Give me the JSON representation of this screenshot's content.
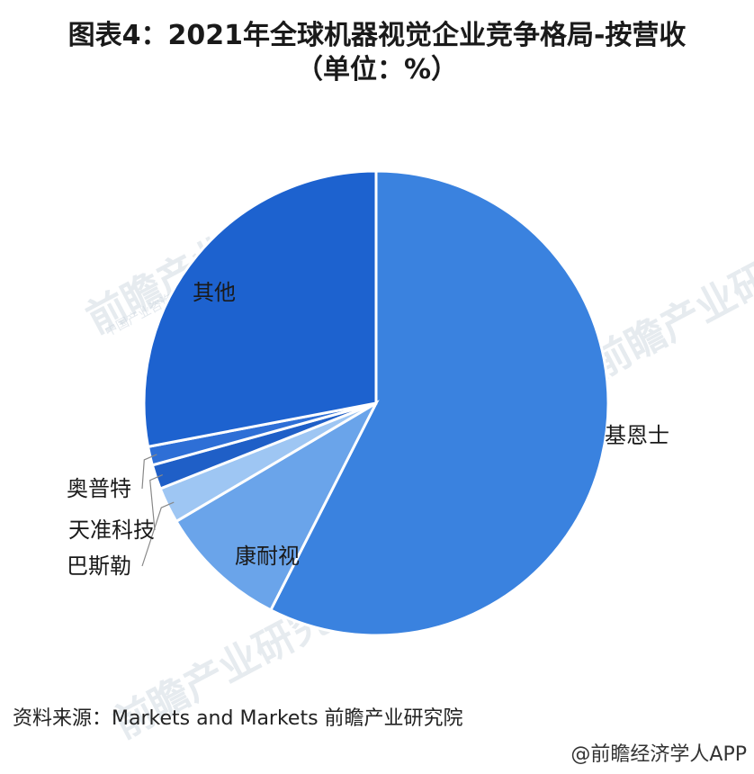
{
  "title_line1": "图表4：2021年全球机器视觉企业竞争格局-按营收",
  "title_line2": "（单位：%）",
  "source": "资料来源：Markets and Markets 前瞻产业研究院",
  "footer": "@前瞻经济学人APP",
  "watermark": {
    "text": "前瞻产业研究院",
    "sub": "中国产业咨询领导者"
  },
  "chart_data": {
    "type": "pie",
    "title": "图表4：2021年全球机器视觉企业竞争格局-按营收（单位：%）",
    "labels_on_chart": true,
    "slices": [
      {
        "name": "基恩士",
        "value": 57.5,
        "color": "#3a82df"
      },
      {
        "name": "康耐视",
        "value": 9.0,
        "color": "#6aa4ea"
      },
      {
        "name": "巴斯勒",
        "value": 2.5,
        "color": "#9ec6f3"
      },
      {
        "name": "天准科技",
        "value": 1.7,
        "color": "#1f5fc7"
      },
      {
        "name": "奥普特",
        "value": 1.3,
        "color": "#2e6fd6"
      },
      {
        "name": "其他",
        "value": 28.0,
        "color": "#1d62cf"
      }
    ]
  }
}
